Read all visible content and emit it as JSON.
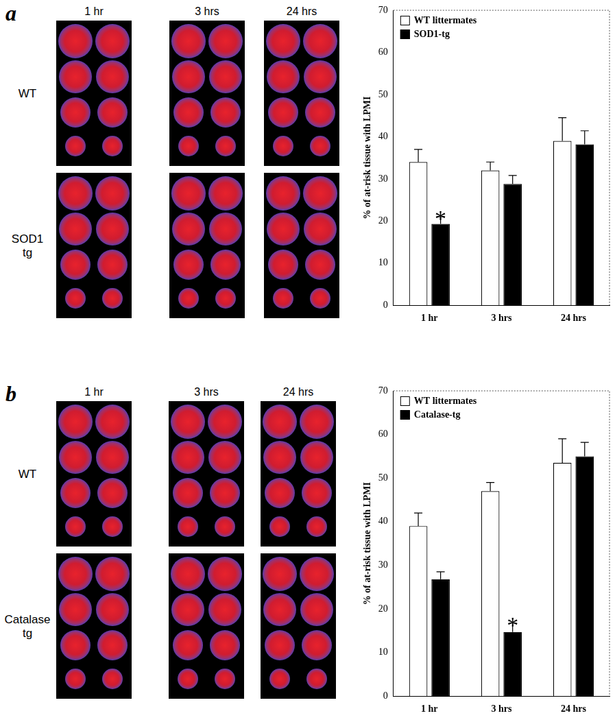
{
  "panels": [
    {
      "label": "a",
      "columns": [
        "1 hr",
        "3 hrs",
        "24 hrs"
      ],
      "rows": [
        [
          "WT"
        ],
        [
          "SOD1",
          "tg"
        ]
      ]
    },
    {
      "label": "b",
      "columns": [
        "1 hr",
        "3 hrs",
        "24 hrs"
      ],
      "rows": [
        [
          "WT"
        ],
        [
          "Catalase",
          "tg"
        ]
      ]
    }
  ],
  "chart_data": [
    {
      "type": "bar",
      "y_label": "% of at-risk tissue with LPMI",
      "categories": [
        "1 hr",
        "3 hrs",
        "24 hrs"
      ],
      "series": [
        {
          "name": "WT littermates",
          "color": "#ffffff",
          "values": [
            34,
            32,
            39
          ],
          "errors": [
            3,
            2,
            5.5
          ]
        },
        {
          "name": "SOD1-tg",
          "color": "#000000",
          "values": [
            19.3,
            28.8,
            38.2
          ],
          "errors": [
            1.7,
            2,
            3.2
          ]
        }
      ],
      "ylim": [
        0,
        70
      ],
      "yticks": [
        0,
        10,
        20,
        30,
        40,
        50,
        60,
        70
      ],
      "grid": false,
      "legend": "top-left",
      "annotations": [
        {
          "text": "*",
          "category": "1 hr",
          "series": "SOD1-tg"
        }
      ]
    },
    {
      "type": "bar",
      "y_label": "% of at-risk tissue with LPMI",
      "categories": [
        "1 hr",
        "3 hrs",
        "24 hrs"
      ],
      "series": [
        {
          "name": "WT littermates",
          "color": "#ffffff",
          "values": [
            39,
            47,
            53.5
          ],
          "errors": [
            3,
            2,
            5.5
          ]
        },
        {
          "name": "Catalase-tg",
          "color": "#000000",
          "values": [
            26.8,
            14.7,
            55
          ],
          "errors": [
            1.7,
            2,
            3.2
          ]
        }
      ],
      "ylim": [
        0,
        70
      ],
      "yticks": [
        0,
        10,
        20,
        30,
        40,
        50,
        60,
        70
      ],
      "grid": false,
      "legend": "top-left",
      "annotations": [
        {
          "text": "*",
          "category": "3 hrs",
          "series": "Catalase-tg"
        }
      ]
    }
  ]
}
